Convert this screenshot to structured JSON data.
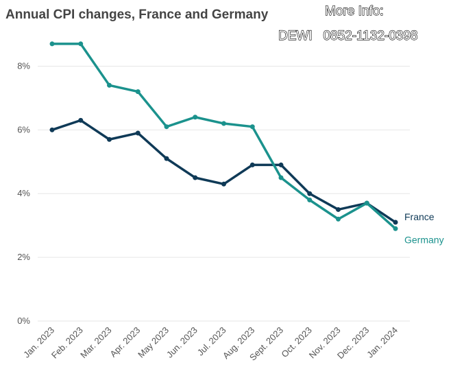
{
  "chart_data": {
    "type": "line",
    "title": "Annual CPI changes, France and Germany",
    "annotations": [
      "More Info:",
      "DEWI   0852-1132-0398"
    ],
    "categories": [
      "Jan. 2023",
      "Feb. 2023",
      "Mar. 2023",
      "Apr. 2023",
      "May 2023",
      "Jun. 2023",
      "Jul. 2023",
      "Aug. 2023",
      "Sept. 2023",
      "Oct. 2023",
      "Nov. 2023",
      "Dec. 2023",
      "Jan. 2024"
    ],
    "series": [
      {
        "name": "France",
        "color": "#0f3a57",
        "values": [
          6.0,
          6.3,
          5.7,
          5.9,
          5.1,
          4.5,
          4.3,
          4.9,
          4.9,
          4.0,
          3.5,
          3.7,
          3.1
        ]
      },
      {
        "name": "Germany",
        "color": "#1b928d",
        "values": [
          8.7,
          8.7,
          7.4,
          7.2,
          6.1,
          6.4,
          6.2,
          6.1,
          4.5,
          3.8,
          3.2,
          3.7,
          2.9
        ]
      }
    ],
    "ylim": [
      0,
      9
    ],
    "yticks": [
      {
        "value": 0,
        "label": "0%"
      },
      {
        "value": 2,
        "label": "2%"
      },
      {
        "value": 4,
        "label": "4%"
      },
      {
        "value": 6,
        "label": "6%"
      },
      {
        "value": 8,
        "label": "8%"
      }
    ],
    "grid": true
  }
}
